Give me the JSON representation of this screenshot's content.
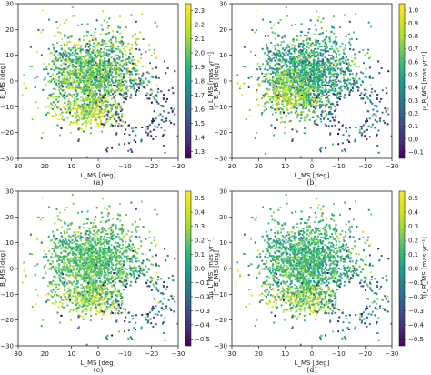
{
  "chart_data": [
    {
      "type": "scatter",
      "panel": "(a)",
      "xlabel": "L_MS [deg]",
      "ylabel": "B_MS [deg]",
      "colorbar_label": "μ_L_MS [mas yr⁻¹]",
      "xlim": [
        30,
        -30
      ],
      "ylim": [
        -30,
        30
      ],
      "xticks": [
        30,
        20,
        10,
        0,
        -10,
        -20,
        -30
      ],
      "yticks": [
        30,
        20,
        10,
        0,
        -10,
        -20,
        -30
      ],
      "cticks": [
        "1.3",
        "1.4",
        "1.5",
        "1.6",
        "1.7",
        "1.8",
        "1.9",
        "2.0",
        "2.1",
        "2.2",
        "2.3"
      ],
      "crange": [
        1.25,
        2.35
      ],
      "colormap": "viridis",
      "hole": {
        "x": -15,
        "y": -12,
        "r": 6
      },
      "regions": [
        {
          "x": 2,
          "y": 3,
          "sx": 9,
          "sy": 8,
          "n": 1500,
          "value": 1.95,
          "spread": 0.18
        },
        {
          "x": 3,
          "y": -12,
          "sx": 7,
          "sy": 3,
          "n": 250,
          "value": 2.15,
          "spread": 0.12
        },
        {
          "x": -16,
          "y": -12,
          "sx": 8,
          "sy": 7,
          "n": 260,
          "value": 1.45,
          "spread": 0.15
        },
        {
          "x": 0,
          "y": 0,
          "sx": 22,
          "sy": 18,
          "n": 120,
          "value": 1.8,
          "spread": 0.4
        }
      ]
    },
    {
      "type": "scatter",
      "panel": "(b)",
      "xlabel": "L_MS [deg]",
      "ylabel": "B_MS [deg]",
      "colorbar_label": "μ_B_MS [mas yr⁻¹]",
      "xlim": [
        30,
        -30
      ],
      "ylim": [
        -30,
        30
      ],
      "xticks": [
        30,
        20,
        10,
        0,
        -10,
        -20,
        -30
      ],
      "yticks": [
        30,
        20,
        10,
        0,
        -10,
        -20,
        -30
      ],
      "cticks": [
        "−0.1",
        "0.0",
        "0.1",
        "0.2",
        "0.3",
        "0.4",
        "0.5",
        "0.6",
        "0.7",
        "0.8",
        "0.9",
        "1.0"
      ],
      "crange": [
        -0.15,
        1.05
      ],
      "colormap": "viridis",
      "hole": {
        "x": -15,
        "y": -12,
        "r": 6
      },
      "regions": [
        {
          "x": 2,
          "y": 3,
          "sx": 9,
          "sy": 8,
          "n": 1500,
          "value": 0.5,
          "spread": 0.15
        },
        {
          "x": 8,
          "y": -6,
          "sx": 6,
          "sy": 4,
          "n": 250,
          "value": 0.85,
          "spread": 0.12
        },
        {
          "x": -16,
          "y": -12,
          "sx": 8,
          "sy": 7,
          "n": 260,
          "value": 0.15,
          "spread": 0.2
        },
        {
          "x": 0,
          "y": 0,
          "sx": 22,
          "sy": 18,
          "n": 120,
          "value": 0.4,
          "spread": 0.4
        }
      ]
    },
    {
      "type": "scatter",
      "panel": "(c)",
      "xlabel": "L_MS [deg]",
      "ylabel": "B_MS [deg]",
      "colorbar_label": "Δμ_L_MS [mas yr⁻¹]",
      "xlim": [
        30,
        -30
      ],
      "ylim": [
        -30,
        30
      ],
      "xticks": [
        30,
        20,
        10,
        0,
        -10,
        -20,
        -30
      ],
      "yticks": [
        30,
        20,
        10,
        0,
        -10,
        -20,
        -30
      ],
      "cticks": [
        "−0.5",
        "−0.4",
        "−0.3",
        "−0.2",
        "−0.1",
        "0.0",
        "0.1",
        "0.2",
        "0.3",
        "0.4",
        "0.5"
      ],
      "crange": [
        -0.55,
        0.55
      ],
      "colormap": "viridis",
      "hole": {
        "x": -15,
        "y": -12,
        "r": 6
      },
      "regions": [
        {
          "x": 2,
          "y": 3,
          "sx": 9,
          "sy": 8,
          "n": 1500,
          "value": 0.15,
          "spread": 0.1
        },
        {
          "x": 3,
          "y": -12,
          "sx": 7,
          "sy": 3,
          "n": 250,
          "value": 0.3,
          "spread": 0.15
        },
        {
          "x": -16,
          "y": -12,
          "sx": 8,
          "sy": 7,
          "n": 260,
          "value": -0.2,
          "spread": 0.2
        },
        {
          "x": 0,
          "y": 0,
          "sx": 22,
          "sy": 18,
          "n": 120,
          "value": 0.0,
          "spread": 0.4
        }
      ]
    },
    {
      "type": "scatter",
      "panel": "(d)",
      "xlabel": "L_MS [deg]",
      "ylabel": "B_MS [deg]",
      "colorbar_label": "Δμ_B_MS [mas yr⁻¹]",
      "xlim": [
        30,
        -30
      ],
      "ylim": [
        -30,
        30
      ],
      "xticks": [
        30,
        20,
        10,
        0,
        -10,
        -20,
        -30
      ],
      "yticks": [
        30,
        20,
        10,
        0,
        -10,
        -20,
        -30
      ],
      "cticks": [
        "−0.5",
        "−0.4",
        "−0.3",
        "−0.2",
        "−0.1",
        "0.0",
        "0.1",
        "0.2",
        "0.3",
        "0.4",
        "0.5"
      ],
      "crange": [
        -0.55,
        0.55
      ],
      "colormap": "viridis",
      "hole": {
        "x": -15,
        "y": -12,
        "r": 6
      },
      "regions": [
        {
          "x": 2,
          "y": 3,
          "sx": 9,
          "sy": 8,
          "n": 1500,
          "value": 0.1,
          "spread": 0.1
        },
        {
          "x": 3,
          "y": -12,
          "sx": 7,
          "sy": 3,
          "n": 250,
          "value": 0.3,
          "spread": 0.15
        },
        {
          "x": -16,
          "y": -12,
          "sx": 8,
          "sy": 7,
          "n": 260,
          "value": -0.15,
          "spread": 0.2
        },
        {
          "x": 0,
          "y": 0,
          "sx": 22,
          "sy": 18,
          "n": 120,
          "value": 0.0,
          "spread": 0.4
        }
      ]
    }
  ]
}
